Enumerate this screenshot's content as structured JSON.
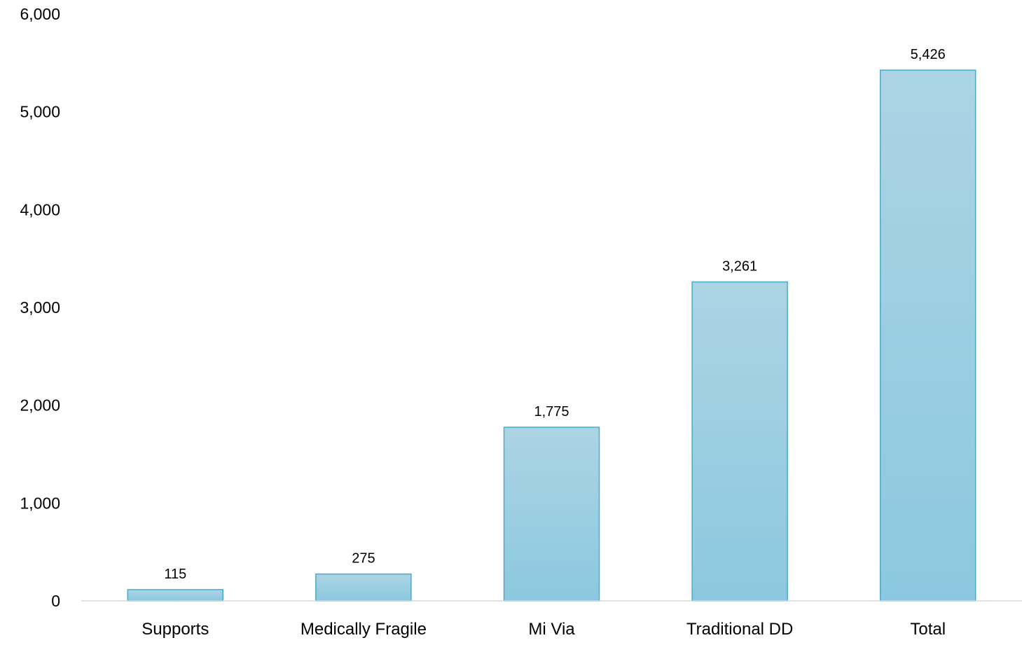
{
  "chart_data": {
    "type": "bar",
    "title": "",
    "xlabel": "",
    "ylabel": "",
    "categories": [
      "Supports",
      "Medically Fragile",
      "Mi Via",
      "Traditional DD",
      "Total"
    ],
    "values": [
      115,
      275,
      1775,
      3261,
      5426
    ],
    "data_labels": [
      "115",
      "275",
      "1,775",
      "3,261",
      "5,426"
    ],
    "ylim": [
      0,
      6000
    ],
    "yticks": [
      0,
      1000,
      2000,
      3000,
      4000,
      5000,
      6000
    ],
    "ytick_labels": [
      "0",
      "1,000",
      "2,000",
      "3,000",
      "4,000",
      "5,000",
      "6,000"
    ],
    "grid": false,
    "legend": "none",
    "colors": {
      "bar_top": "#acd4e4",
      "bar_bottom": "#8bc8df",
      "bar_stroke": "#4aaac8",
      "axis": "#d9d9d9"
    }
  }
}
